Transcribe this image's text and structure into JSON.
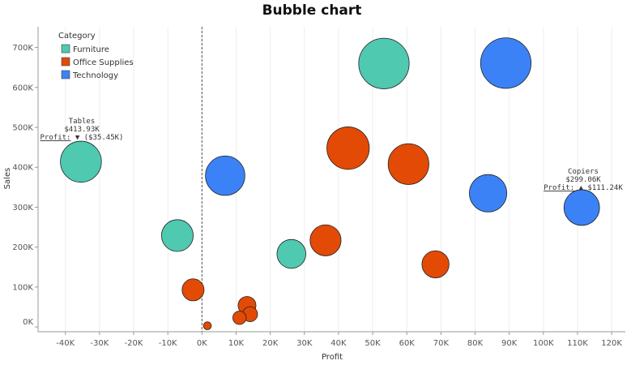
{
  "chart_data": {
    "type": "scatter",
    "title": "Bubble chart",
    "xlabel": "Profit",
    "ylabel": "Sales",
    "xlim": [
      -48000,
      124000
    ],
    "ylim": [
      -12000,
      752000
    ],
    "x_ticks": [
      -40000,
      -30000,
      -20000,
      -10000,
      0,
      10000,
      20000,
      30000,
      40000,
      50000,
      60000,
      70000,
      80000,
      90000,
      100000,
      110000,
      120000
    ],
    "x_tick_labels": [
      "-40K",
      "-30K",
      "-20K",
      "-10K",
      "0K",
      "10K",
      "20K",
      "30K",
      "40K",
      "50K",
      "60K",
      "70K",
      "80K",
      "90K",
      "100K",
      "110K",
      "120K"
    ],
    "y_ticks": [
      0,
      100000,
      200000,
      300000,
      400000,
      500000,
      600000,
      700000
    ],
    "y_tick_labels": [
      "0K",
      "100K",
      "200K",
      "300K",
      "400K",
      "500K",
      "600K",
      "700K"
    ],
    "reference_line_x": 0,
    "grid": "vertical",
    "legend": {
      "title": "Category",
      "position": "top-left",
      "items": [
        {
          "name": "Furniture",
          "color": "#4fc9b0"
        },
        {
          "name": "Office Supplies",
          "color": "#e24a05"
        },
        {
          "name": "Technology",
          "color": "#3b82f6"
        }
      ]
    },
    "series": [
      {
        "name": "Furniture",
        "color": "#4fc9b0",
        "points": [
          {
            "x": -35450,
            "y": 413930
          },
          {
            "x": -7200,
            "y": 229000
          },
          {
            "x": 26200,
            "y": 183000
          },
          {
            "x": 53300,
            "y": 660000
          }
        ]
      },
      {
        "name": "Office Supplies",
        "color": "#e24a05",
        "points": [
          {
            "x": -2600,
            "y": 93000
          },
          {
            "x": 1600,
            "y": 3000
          },
          {
            "x": 11000,
            "y": 23000
          },
          {
            "x": 13200,
            "y": 54000
          },
          {
            "x": 14100,
            "y": 32000
          },
          {
            "x": 36200,
            "y": 217000
          },
          {
            "x": 42800,
            "y": 448000
          },
          {
            "x": 60500,
            "y": 408000
          },
          {
            "x": 68400,
            "y": 157000
          }
        ]
      },
      {
        "name": "Technology",
        "color": "#3b82f6",
        "points": [
          {
            "x": 6800,
            "y": 379000
          },
          {
            "x": 83800,
            "y": 335000
          },
          {
            "x": 89000,
            "y": 661000
          },
          {
            "x": 111240,
            "y": 299060
          }
        ]
      }
    ],
    "annotations": [
      {
        "name": "Tables",
        "value": "$413.93K",
        "profit_label": "Profit:",
        "profit_value": "▼ ($35.45K)"
      },
      {
        "name": "Copiers",
        "value": "$299.06K",
        "profit_label": "Profit:",
        "profit_value": "▲ $111.24K"
      }
    ]
  }
}
